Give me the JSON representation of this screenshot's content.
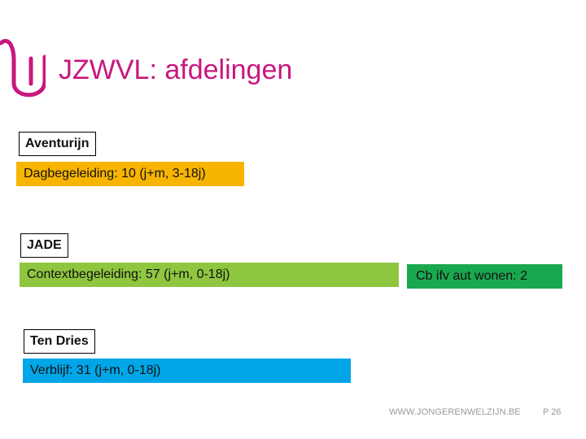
{
  "title": "JZWVL: afdelingen",
  "colors": {
    "brand": "#c8177e",
    "dagbegeleiding": "#f7b400",
    "contextbegeleiding": "#8ec63f",
    "cb_aut_wonen": "#1aa84f",
    "verblijf": "#00a6e8"
  },
  "logo": {
    "icon": "jongerenwelzijn-logo-icon"
  },
  "sections": [
    {
      "label": "Aventurijn",
      "bars": [
        "Dagbegeleiding: 10 (j+m, 3-18j)"
      ]
    },
    {
      "label": "JADE",
      "bars": [
        "Contextbegeleiding: 57 (j+m, 0-18j)",
        "Cb ifv aut wonen: 2"
      ]
    },
    {
      "label": "Ten Dries",
      "bars": [
        "Verblijf: 31 (j+m, 0-18j)"
      ]
    }
  ],
  "footer": {
    "url": "WWW.JONGERENWELZIJN.BE",
    "page": "P 26"
  }
}
